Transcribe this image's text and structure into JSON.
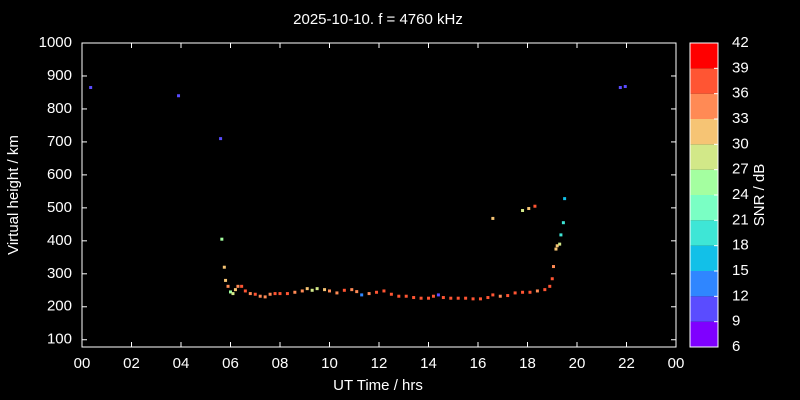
{
  "chart_data": {
    "type": "scatter",
    "title": "2025-10-10. f = 4760 kHz",
    "xlabel": "UT Time / hrs",
    "ylabel": "Virtual height / km",
    "colorbar_label": "SNR / dB",
    "xlim": [
      0,
      24
    ],
    "xticks": [
      {
        "value": 0,
        "label": "00"
      },
      {
        "value": 2,
        "label": "02"
      },
      {
        "value": 4,
        "label": "04"
      },
      {
        "value": 6,
        "label": "06"
      },
      {
        "value": 8,
        "label": "08"
      },
      10,
      12,
      14,
      16,
      18,
      20,
      22,
      {
        "value": 24,
        "label": "00"
      }
    ],
    "ylim": [
      78,
      1000
    ],
    "yticks": [
      100,
      200,
      300,
      400,
      500,
      600,
      700,
      800,
      900,
      1000
    ],
    "clim": [
      6,
      42
    ],
    "cticks": [
      6,
      9,
      12,
      15,
      18,
      21,
      24,
      27,
      30,
      33,
      36,
      39,
      42
    ],
    "colormap": [
      "#7f00ff",
      "#5a4cff",
      "#2f86ff",
      "#12c0e8",
      "#3ee6d6",
      "#7affc4",
      "#a4ffa0",
      "#d2e888",
      "#f6c474",
      "#ff8a55",
      "#ff5533",
      "#ff0000"
    ],
    "x": [
      0.35,
      3.9,
      5.6,
      5.65,
      5.75,
      5.8,
      5.9,
      6.0,
      6.1,
      6.2,
      6.3,
      6.45,
      6.6,
      6.8,
      7.0,
      7.2,
      7.4,
      7.6,
      7.8,
      8.0,
      8.3,
      8.6,
      8.9,
      9.1,
      9.3,
      9.5,
      9.8,
      10.0,
      10.3,
      10.6,
      10.9,
      11.1,
      11.3,
      11.6,
      11.9,
      12.2,
      12.5,
      12.8,
      13.1,
      13.4,
      13.7,
      14.0,
      14.2,
      14.4,
      14.6,
      14.9,
      15.2,
      15.5,
      15.8,
      16.1,
      16.4,
      16.6,
      16.9,
      17.2,
      17.5,
      17.8,
      18.1,
      18.4,
      18.7,
      18.9,
      19.0,
      19.05,
      19.15,
      19.2,
      19.3,
      19.35,
      19.45,
      19.5,
      16.6,
      17.8,
      18.05,
      18.3,
      21.75,
      21.95
    ],
    "y": [
      865,
      840,
      710,
      405,
      320,
      280,
      262,
      245,
      240,
      252,
      262,
      262,
      248,
      240,
      238,
      232,
      230,
      238,
      240,
      240,
      240,
      244,
      248,
      255,
      250,
      255,
      252,
      248,
      242,
      250,
      252,
      246,
      236,
      240,
      244,
      248,
      238,
      232,
      232,
      228,
      226,
      226,
      232,
      236,
      228,
      226,
      226,
      226,
      224,
      224,
      228,
      236,
      232,
      234,
      242,
      244,
      244,
      248,
      252,
      262,
      285,
      322,
      375,
      385,
      390,
      418,
      455,
      528,
      468,
      492,
      498,
      505,
      865,
      868
    ],
    "snr": [
      9,
      9,
      10,
      25,
      31,
      32,
      33,
      26,
      28,
      30,
      35,
      36,
      36,
      35,
      37,
      34,
      33,
      35,
      37,
      36,
      36,
      35,
      33,
      30,
      28,
      27,
      30,
      33,
      35,
      36,
      33,
      35,
      12,
      35,
      36,
      36,
      36,
      37,
      36,
      37,
      37,
      37,
      36,
      9,
      36,
      37,
      37,
      37,
      37,
      37,
      36,
      36,
      35,
      36,
      37,
      37,
      37,
      35,
      36,
      37,
      37,
      33,
      32,
      30,
      28,
      20,
      20,
      16,
      31,
      28,
      32,
      36,
      9,
      10
    ]
  }
}
